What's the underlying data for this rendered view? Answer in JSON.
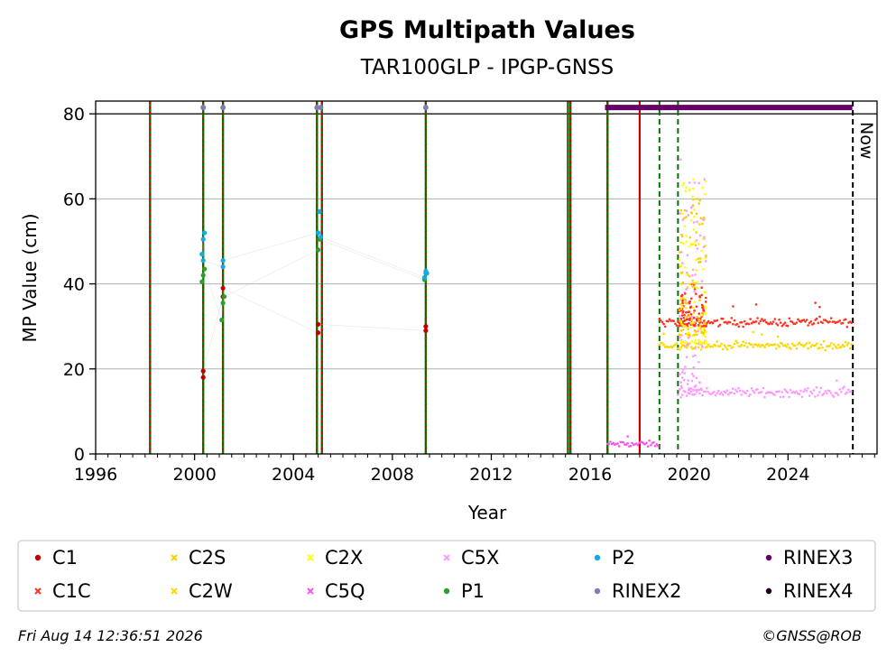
{
  "chart_data": {
    "type": "scatter",
    "title": "GPS Multipath Values",
    "subtitle": "TAR100GLP - IPGP-GNSS",
    "xlabel": "Year",
    "ylabel": "MP Value (cm)",
    "xlim": [
      1996.0,
      2027.6
    ],
    "ylim": [
      0,
      83
    ],
    "x_ticks": [
      1996,
      2000,
      2004,
      2008,
      2012,
      2016,
      2020,
      2024
    ],
    "y_ticks": [
      0,
      20,
      40,
      60,
      80
    ],
    "grid": "horizontal",
    "now_label": "Now",
    "now_x": 2026.62,
    "reference_line_y": 80,
    "colors": {
      "C1": "#c00000",
      "C1C": "#ff3322",
      "C2S": "#ffcc00",
      "C2W": "#ffd700",
      "C2X": "#ffff00",
      "C5Q": "#ff55ee",
      "C5X": "#ff99ff",
      "P1": "#2ca02c",
      "P2": "#11aaee",
      "RINEX2": "#8877bb",
      "RINEX3": "#660066",
      "RINEX4": "#220022",
      "receiver_change": "#cc0000",
      "antenna_change": "#007700"
    },
    "legend": {
      "placement": "bottom",
      "entries": [
        {
          "label": "C1",
          "marker": "dot",
          "color_key": "C1"
        },
        {
          "label": "C2S",
          "marker": "x",
          "color_key": "C2S"
        },
        {
          "label": "C2X",
          "marker": "x",
          "color_key": "C2X"
        },
        {
          "label": "C5X",
          "marker": "x",
          "color_key": "C5X"
        },
        {
          "label": "P2",
          "marker": "dot",
          "color_key": "P2"
        },
        {
          "label": "RINEX3",
          "marker": "dot",
          "color_key": "RINEX3"
        },
        {
          "label": "C1C",
          "marker": "x",
          "color_key": "C1C"
        },
        {
          "label": "C2W",
          "marker": "x",
          "color_key": "C2W"
        },
        {
          "label": "C5Q",
          "marker": "x",
          "color_key": "C5Q"
        },
        {
          "label": "P1",
          "marker": "dot",
          "color_key": "P1"
        },
        {
          "label": "RINEX2",
          "marker": "dot",
          "color_key": "RINEX2"
        },
        {
          "label": "RINEX4",
          "marker": "dot",
          "color_key": "RINEX4"
        }
      ]
    },
    "event_lines": [
      {
        "x": 1998.2,
        "kind": "both"
      },
      {
        "x": 2000.35,
        "kind": "both"
      },
      {
        "x": 2001.15,
        "kind": "both"
      },
      {
        "x": 2004.95,
        "kind": "both"
      },
      {
        "x": 2005.15,
        "kind": "both"
      },
      {
        "x": 2009.35,
        "kind": "both"
      },
      {
        "x": 2015.1,
        "kind": "both"
      },
      {
        "x": 2015.2,
        "kind": "both"
      },
      {
        "x": 2016.7,
        "kind": "both"
      },
      {
        "x": 2018.0,
        "kind": "receiver"
      },
      {
        "x": 2018.8,
        "kind": "antenna_dashed"
      },
      {
        "x": 2019.55,
        "kind": "antenna_dashed"
      }
    ],
    "rinex_markers": {
      "RINEX2_x": [
        2000.35,
        2001.15,
        2004.95,
        2005.1,
        2009.35
      ],
      "RINEX2_y": 81.5,
      "RINEX3_range": [
        2016.6,
        2026.6
      ],
      "RINEX3_y": 81.5
    },
    "early_series": [
      {
        "name": "C1",
        "x": [
          2000.35,
          2000.35,
          2001.15,
          2001.15,
          2005.0,
          2005.0,
          2009.35,
          2009.35
        ],
        "y": [
          18.0,
          19.5,
          37.0,
          39.0,
          28.5,
          30.5,
          29.0,
          30.0
        ]
      },
      {
        "name": "P1",
        "x": [
          2000.3,
          2000.35,
          2000.4,
          2001.1,
          2001.15,
          2001.2,
          2005.0,
          2005.05,
          2009.3,
          2009.35
        ],
        "y": [
          40.5,
          42.0,
          43.5,
          31.5,
          35.5,
          37.0,
          48.0,
          50.5,
          41.0,
          42.5
        ]
      },
      {
        "name": "P2",
        "x": [
          2000.3,
          2000.35,
          2000.4,
          2000.35,
          2001.15,
          2001.15,
          2005.0,
          2005.05,
          2005.1,
          2009.3,
          2009.35,
          2009.4
        ],
        "y": [
          47.0,
          50.5,
          52.0,
          45.5,
          44.0,
          45.5,
          52.0,
          57.0,
          51.0,
          41.5,
          43.0,
          42.5
        ]
      }
    ],
    "continuous_series": [
      {
        "name": "C5Q",
        "x_range": [
          2016.7,
          2018.8
        ],
        "y_mean": 2.3,
        "y_noise": 1.1,
        "spike": 4.5
      },
      {
        "name": "C1C",
        "x_range": [
          2018.8,
          2026.6
        ],
        "y_mean": 31.0,
        "y_noise": 1.4,
        "spike": 36.0
      },
      {
        "name": "C2W",
        "x_range": [
          2018.8,
          2026.6
        ],
        "y_mean": 25.5,
        "y_noise": 1.3,
        "spike": 29.0
      },
      {
        "name": "C5X",
        "x_range": [
          2019.55,
          2026.6
        ],
        "y_mean": 14.5,
        "y_noise": 1.5,
        "spike": 18.0
      }
    ],
    "burst_period": {
      "x_range": [
        2019.6,
        2020.7
      ],
      "C2X_y_range": [
        26,
        65
      ],
      "C2S_y_range": [
        28,
        60
      ],
      "C1C_y_range": [
        30,
        40
      ],
      "C5X_y_range": [
        15,
        71
      ]
    }
  },
  "footer": {
    "timestamp": "Fri Aug 14 12:36:51 2026",
    "credit": "©GNSS@ROB"
  }
}
